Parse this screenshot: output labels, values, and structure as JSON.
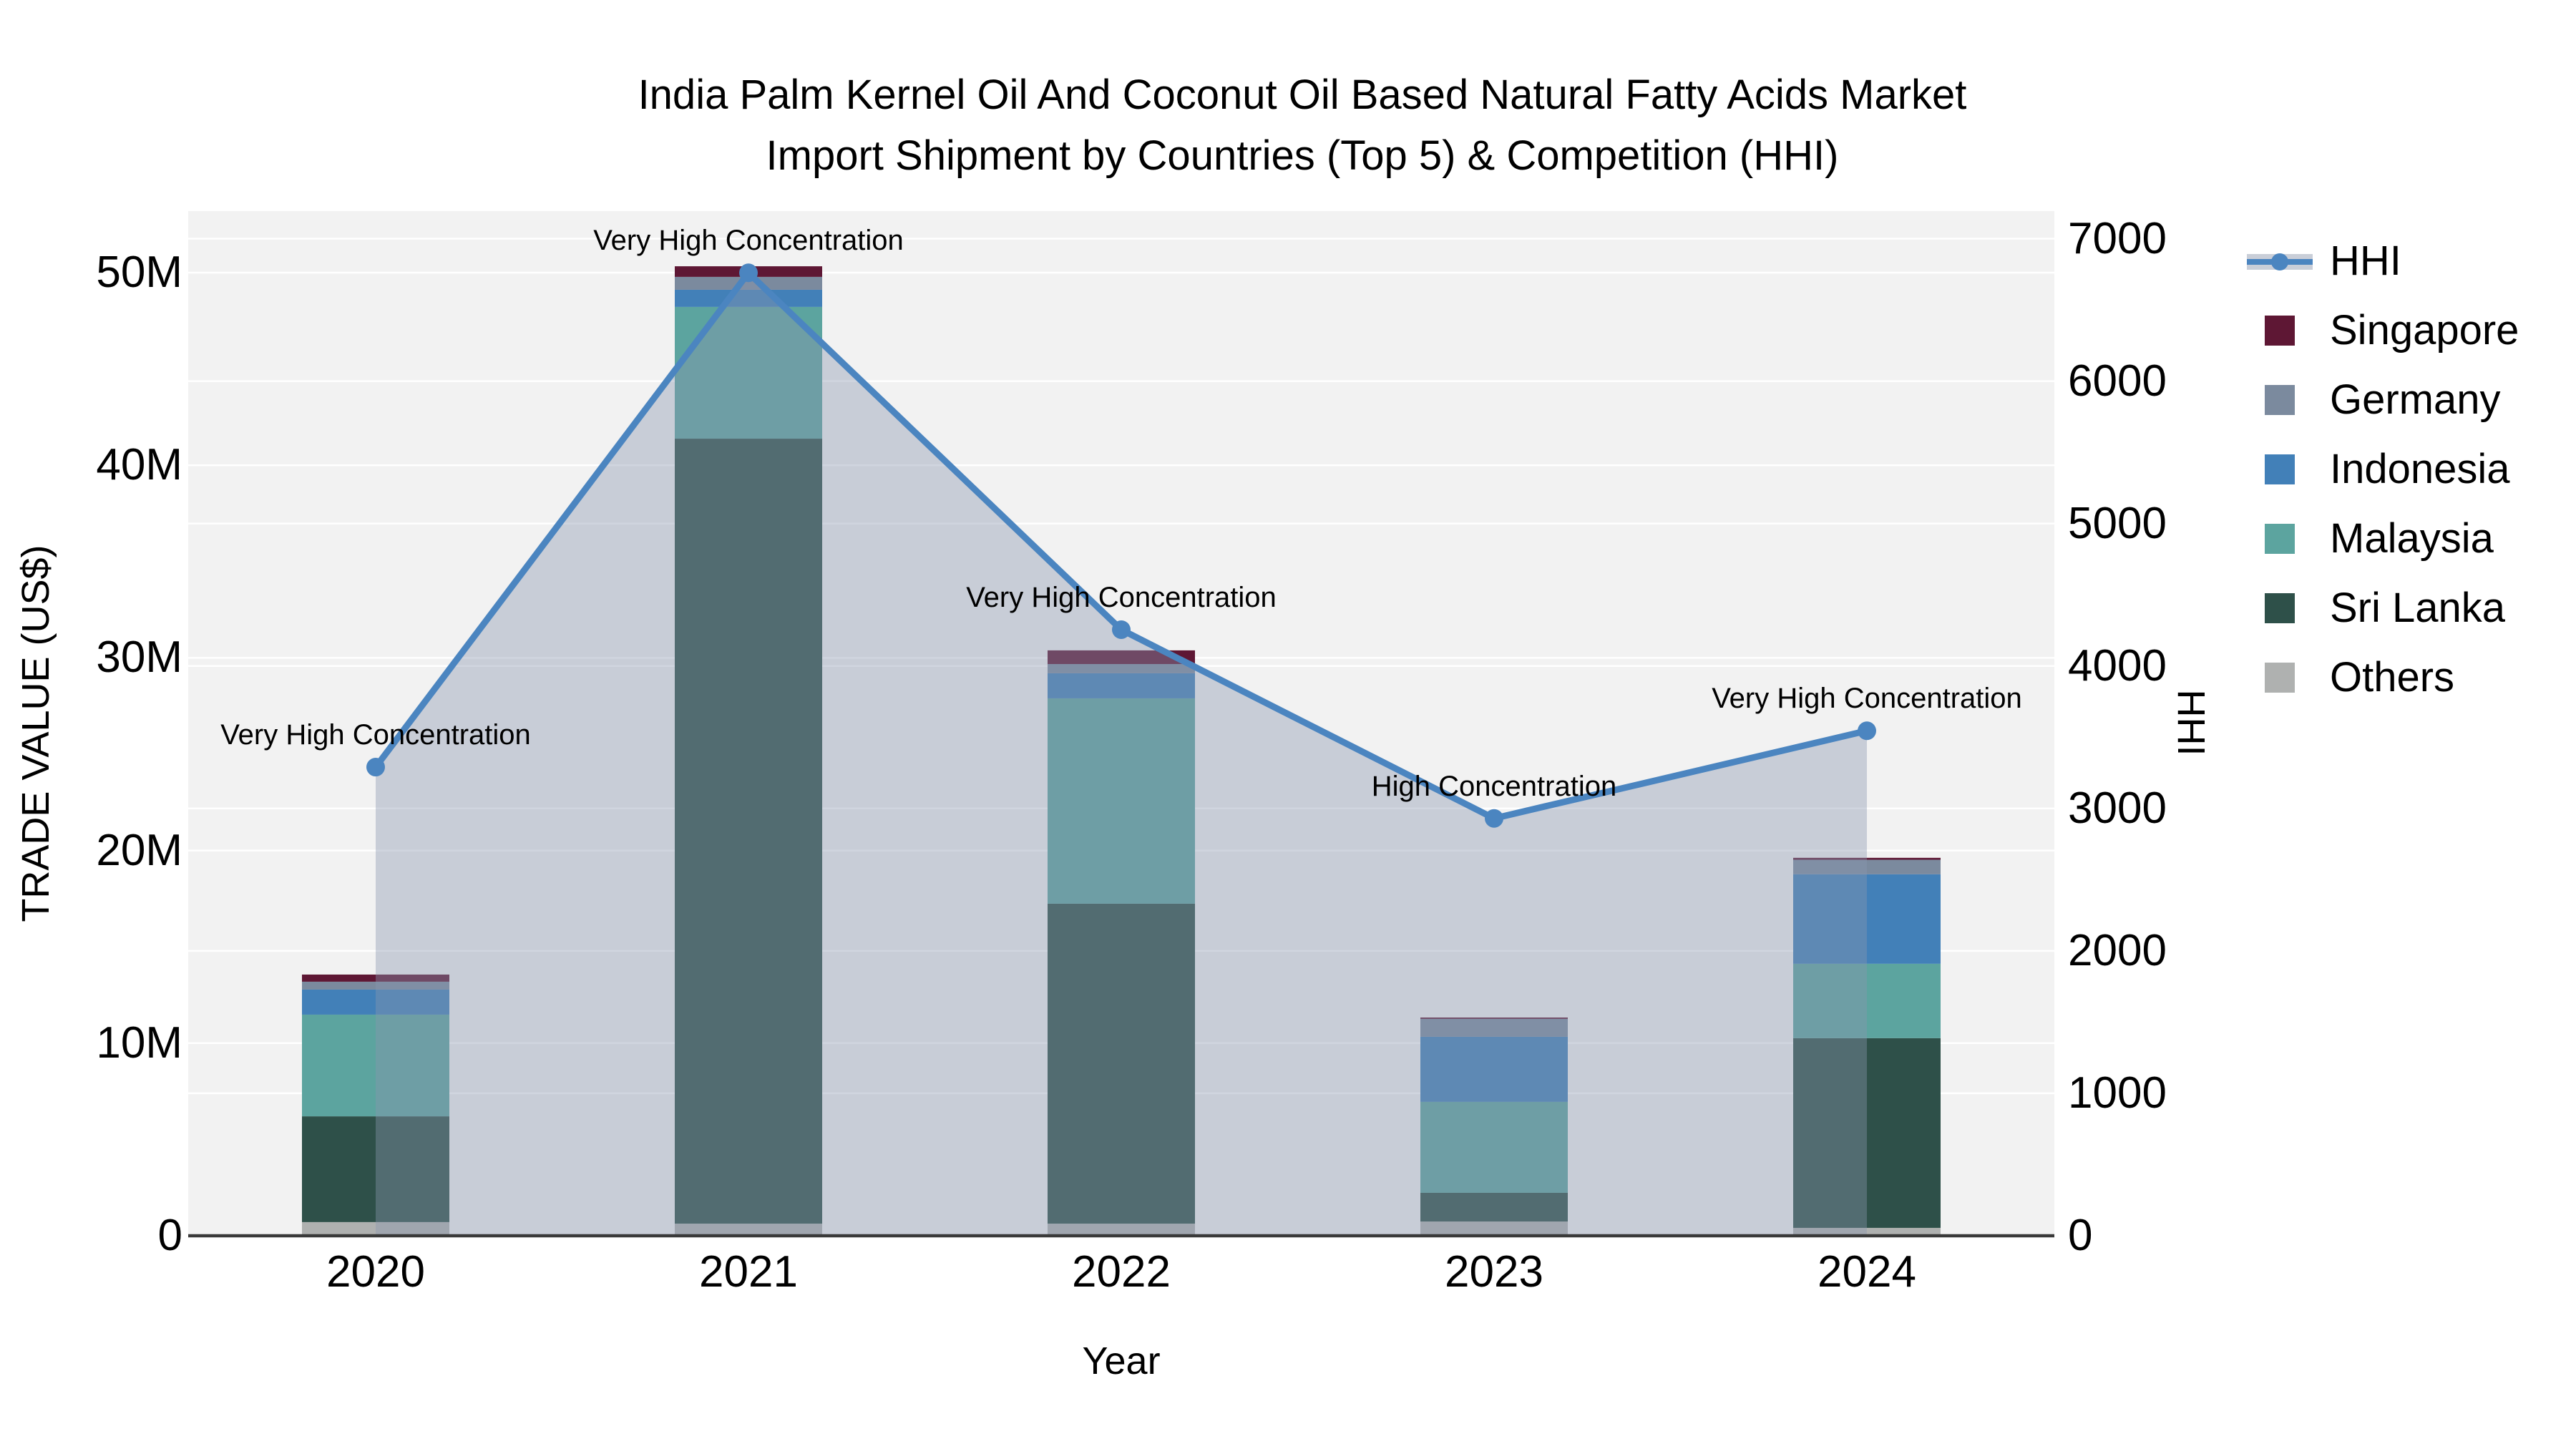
{
  "title": {
    "line1": "India Palm Kernel Oil And Coconut Oil Based Natural Fatty Acids Market",
    "line2": "Import Shipment by Countries (Top 5) & Competition (HHI)"
  },
  "axes": {
    "y_left": {
      "label": "TRADE VALUE (US$)",
      "ticks": [
        {
          "label": "0",
          "value": 0
        },
        {
          "label": "10M",
          "value": 10
        },
        {
          "label": "20M",
          "value": 20
        },
        {
          "label": "30M",
          "value": 30
        },
        {
          "label": "40M",
          "value": 40
        },
        {
          "label": "50M",
          "value": 50
        }
      ],
      "max": 50
    },
    "y_right": {
      "label": "HHI",
      "ticks": [
        {
          "label": "0",
          "value": 0
        },
        {
          "label": "1000",
          "value": 1000
        },
        {
          "label": "2000",
          "value": 2000
        },
        {
          "label": "3000",
          "value": 3000
        },
        {
          "label": "4000",
          "value": 4000
        },
        {
          "label": "5000",
          "value": 5000
        },
        {
          "label": "6000",
          "value": 6000
        },
        {
          "label": "7000",
          "value": 7000
        }
      ],
      "max": 7000
    },
    "x": {
      "label": "Year",
      "categories": [
        "2020",
        "2021",
        "2022",
        "2023",
        "2024"
      ]
    }
  },
  "chart_data": {
    "type": "bar",
    "subtype": "stacked-bars-with-line-overlay",
    "categories": [
      "2020",
      "2021",
      "2022",
      "2023",
      "2024"
    ],
    "bar_unit": "million US$",
    "series": [
      {
        "name": "Others",
        "values": [
          0.71,
          0.63,
          0.63,
          0.74,
          0.41
        ]
      },
      {
        "name": "Sri Lanka",
        "values": [
          5.49,
          40.75,
          16.61,
          1.49,
          9.85
        ]
      },
      {
        "name": "Malaysia",
        "values": [
          5.28,
          6.84,
          10.66,
          4.72,
          3.86
        ]
      },
      {
        "name": "Indonesia",
        "values": [
          1.3,
          0.89,
          1.3,
          3.38,
          4.65
        ]
      },
      {
        "name": "Germany",
        "values": [
          0.41,
          0.67,
          0.48,
          0.93,
          0.75
        ]
      },
      {
        "name": "Singapore",
        "values": [
          0.37,
          0.55,
          0.71,
          0.07,
          0.1
        ]
      }
    ],
    "bar_totals": [
      13.56,
      50.33,
      30.39,
      11.33,
      19.62
    ],
    "line_series": {
      "name": "HHI",
      "axis": "right",
      "values": [
        3290,
        6760,
        4255,
        2930,
        3545
      ],
      "area_fill": true
    },
    "annotations": [
      {
        "category": "2020",
        "text": "Very High Concentration"
      },
      {
        "category": "2021",
        "text": "Very High Concentration"
      },
      {
        "category": "2022",
        "text": "Very High Concentration"
      },
      {
        "category": "2023",
        "text": "High Concentration"
      },
      {
        "category": "2024",
        "text": "Very High Concentration"
      }
    ],
    "title": "India Palm Kernel Oil And Coconut Oil Based Natural Fatty Acids Market Import Shipment by Countries (Top 5) & Competition (HHI)",
    "xlabel": "Year",
    "ylabel_left": "TRADE VALUE (US$)",
    "ylabel_right": "HHI",
    "ylim_left": [
      0,
      50
    ],
    "ylim_right": [
      0,
      7000
    ],
    "grid": true,
    "legend_position": "right"
  },
  "legend": {
    "items": [
      {
        "label": "HHI",
        "type": "line"
      },
      {
        "label": "Singapore",
        "type": "square"
      },
      {
        "label": "Germany",
        "type": "square"
      },
      {
        "label": "Indonesia",
        "type": "square"
      },
      {
        "label": "Malaysia",
        "type": "square"
      },
      {
        "label": "Sri Lanka",
        "type": "square"
      },
      {
        "label": "Others",
        "type": "square"
      }
    ]
  },
  "colors": {
    "Singapore": "#5e1734",
    "Germany": "#7b8a9e",
    "Indonesia": "#4280b8",
    "Malaysia": "#5ca49f",
    "Sri Lanka": "#2e5049",
    "Others": "#afb1b0",
    "hhi_line": "#4b85c0",
    "area_fill": "rgba(138,150,174,0.40)",
    "legend_band": "#c9ced8",
    "plot_background": "#f2f2f2",
    "gridline": "#ffffff",
    "axis_line": "#3a3a3a"
  }
}
